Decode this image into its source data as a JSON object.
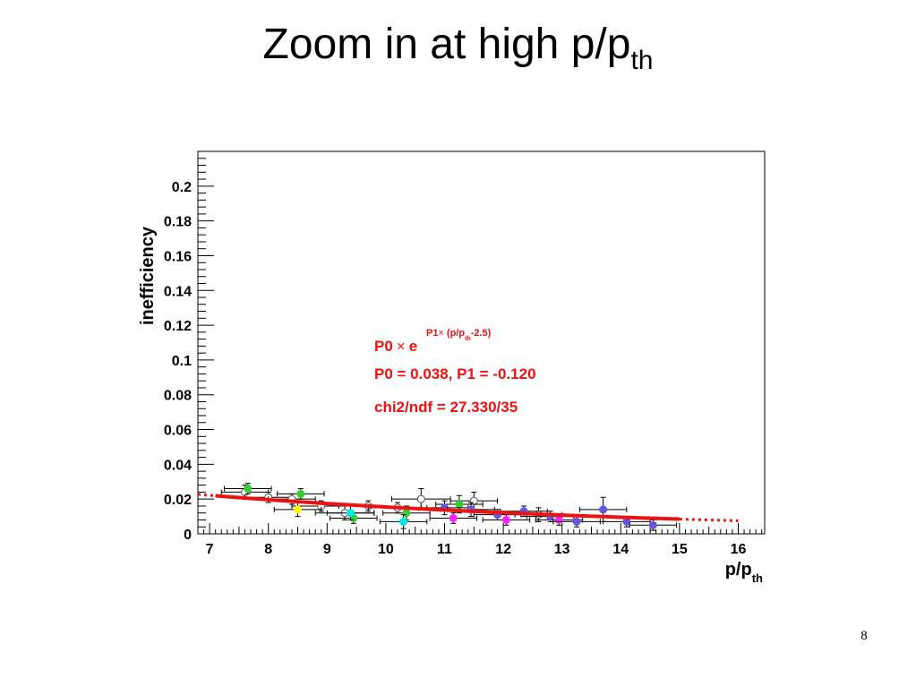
{
  "slide": {
    "title_main": "Zoom in at high p/p",
    "title_sub": "th",
    "page_number": "8"
  },
  "chart_data": {
    "type": "scatter",
    "xlabel_main": "p/p",
    "xlabel_sub": "th",
    "ylabel": "inefficiency",
    "xlim": [
      6.8,
      16.45
    ],
    "ylim": [
      0,
      0.22
    ],
    "x_ticks": [
      7,
      8,
      9,
      10,
      11,
      12,
      13,
      14,
      15,
      16
    ],
    "x_tick_labels": [
      "7",
      "8",
      "9",
      "10",
      "11",
      "12",
      "13",
      "14",
      "15",
      "16"
    ],
    "y_ticks": [
      0,
      0.02,
      0.04,
      0.06,
      0.08,
      0.1,
      0.12,
      0.14,
      0.16,
      0.18,
      0.2
    ],
    "y_tick_labels": [
      "0",
      "0.02",
      "0.04",
      "0.06",
      "0.08",
      "0.1",
      "0.12",
      "0.14",
      "0.16",
      "0.18",
      "0.2"
    ],
    "grid": false,
    "fit": {
      "function": "P0 × exp(P1 × (p/p_th - 2.5))",
      "P0": 0.038,
      "P1": -0.12,
      "solid_range": [
        7.1,
        15.0
      ],
      "dotted_ranges": [
        [
          6.8,
          7.1
        ],
        [
          15.0,
          16.0
        ]
      ],
      "color": "#ee1111"
    },
    "annotations": {
      "formula_main": "P0",
      "formula_times": "×",
      "formula_e": "e",
      "formula_exp_p1": "P1",
      "formula_exp_times": "×",
      "formula_exp_rest": "(p/p",
      "formula_exp_sub": "th",
      "formula_exp_end": "-2.5)",
      "params": "P0 = 0.038, P1 = -0.120",
      "chi2": "chi2/ndf = 27.330/35",
      "color": "#ee1111"
    },
    "series": [
      {
        "color": "#ffffff",
        "points": [
          {
            "x": 7.6,
            "y": 0.024,
            "xerr": 0.4,
            "yerr": 0.004
          },
          {
            "x": 8.0,
            "y": 0.021,
            "xerr": 0.4,
            "yerr": 0.003
          },
          {
            "x": 8.4,
            "y": 0.02,
            "xerr": 0.4,
            "yerr": 0.003
          },
          {
            "x": 8.9,
            "y": 0.016,
            "xerr": 0.5,
            "yerr": 0.003
          },
          {
            "x": 9.3,
            "y": 0.012,
            "xerr": 0.5,
            "yerr": 0.004
          },
          {
            "x": 9.7,
            "y": 0.016,
            "xerr": 0.5,
            "yerr": 0.003
          },
          {
            "x": 10.2,
            "y": 0.015,
            "xerr": 0.5,
            "yerr": 0.003
          },
          {
            "x": 10.6,
            "y": 0.02,
            "xerr": 0.5,
            "yerr": 0.006
          },
          {
            "x": 11.5,
            "y": 0.019,
            "xerr": 0.4,
            "yerr": 0.005
          },
          {
            "x": 12.6,
            "y": 0.011,
            "xerr": 0.4,
            "yerr": 0.004
          }
        ]
      },
      {
        "color": "#33cc33",
        "points": [
          {
            "x": 7.65,
            "y": 0.026,
            "xerr": 0.4,
            "yerr": 0.003
          },
          {
            "x": 8.55,
            "y": 0.023,
            "xerr": 0.4,
            "yerr": 0.003
          },
          {
            "x": 9.45,
            "y": 0.009,
            "xerr": 0.4,
            "yerr": 0.003
          },
          {
            "x": 10.35,
            "y": 0.012,
            "xerr": 0.4,
            "yerr": 0.004
          },
          {
            "x": 11.25,
            "y": 0.017,
            "xerr": 0.4,
            "yerr": 0.005
          }
        ]
      },
      {
        "color": "#ffff00",
        "points": [
          {
            "x": 8.5,
            "y": 0.014,
            "xerr": 0.4,
            "yerr": 0.004
          }
        ]
      },
      {
        "color": "#00e5e5",
        "points": [
          {
            "x": 9.4,
            "y": 0.012,
            "xerr": 0.4,
            "yerr": 0.004
          },
          {
            "x": 10.3,
            "y": 0.007,
            "xerr": 0.4,
            "yerr": 0.004
          }
        ]
      },
      {
        "color": "#ff22ff",
        "points": [
          {
            "x": 11.15,
            "y": 0.009,
            "xerr": 0.4,
            "yerr": 0.003
          },
          {
            "x": 12.05,
            "y": 0.008,
            "xerr": 0.4,
            "yerr": 0.003
          },
          {
            "x": 12.95,
            "y": 0.008,
            "xerr": 0.4,
            "yerr": 0.003
          }
        ]
      },
      {
        "color": "#6655dd",
        "points": [
          {
            "x": 11.0,
            "y": 0.015,
            "xerr": 0.4,
            "yerr": 0.004
          },
          {
            "x": 11.45,
            "y": 0.014,
            "xerr": 0.4,
            "yerr": 0.004
          },
          {
            "x": 11.9,
            "y": 0.011,
            "xerr": 0.4,
            "yerr": 0.003
          },
          {
            "x": 12.35,
            "y": 0.013,
            "xerr": 0.4,
            "yerr": 0.003
          },
          {
            "x": 12.8,
            "y": 0.01,
            "xerr": 0.4,
            "yerr": 0.003
          },
          {
            "x": 13.25,
            "y": 0.007,
            "xerr": 0.4,
            "yerr": 0.003
          },
          {
            "x": 13.7,
            "y": 0.014,
            "xerr": 0.4,
            "yerr": 0.007
          },
          {
            "x": 14.1,
            "y": 0.007,
            "xerr": 0.4,
            "yerr": 0.003
          },
          {
            "x": 14.55,
            "y": 0.005,
            "xerr": 0.4,
            "yerr": 0.003
          }
        ]
      }
    ]
  }
}
